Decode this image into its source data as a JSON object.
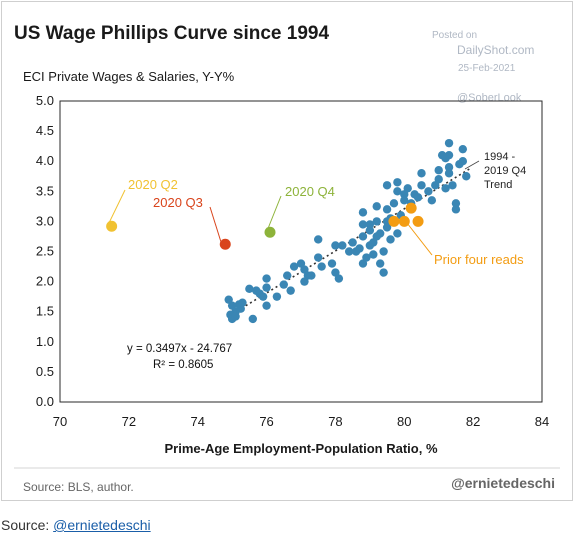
{
  "chart_data": {
    "type": "scatter",
    "title": "US Wage Phillips Curve since 1994",
    "subtitle": "ECI Private Wages & Salaries, Y-Y%",
    "xlabel": "Prime-Age Employment-Population Ratio, %",
    "xlim": [
      70,
      84
    ],
    "ylim": [
      0,
      5
    ],
    "x_ticks": [
      70,
      72,
      74,
      76,
      78,
      80,
      82,
      84
    ],
    "y_ticks": [
      0.0,
      0.5,
      1.0,
      1.5,
      2.0,
      2.5,
      3.0,
      3.5,
      4.0,
      4.5,
      5.0
    ],
    "x_tick_labels": [
      "70",
      "72",
      "74",
      "76",
      "78",
      "80",
      "82",
      "84"
    ],
    "y_tick_labels": [
      "0.0",
      "0.5",
      "1.0",
      "1.5",
      "2.0",
      "2.5",
      "3.0",
      "3.5",
      "4.0",
      "4.5",
      "5.0"
    ],
    "grid": false,
    "series": [
      {
        "color": "#3a86b4",
        "points": [
          [
            74.9,
            1.7
          ],
          [
            75.0,
            1.6
          ],
          [
            75.1,
            1.5
          ],
          [
            74.95,
            1.45
          ],
          [
            75.2,
            1.62
          ],
          [
            75.25,
            1.55
          ],
          [
            75.0,
            1.38
          ],
          [
            75.1,
            1.42
          ],
          [
            75.3,
            1.65
          ],
          [
            75.6,
            1.38
          ],
          [
            75.5,
            1.88
          ],
          [
            75.7,
            1.85
          ],
          [
            75.8,
            1.8
          ],
          [
            75.9,
            1.75
          ],
          [
            76.0,
            1.9
          ],
          [
            76.0,
            2.05
          ],
          [
            76.0,
            1.6
          ],
          [
            76.3,
            1.75
          ],
          [
            76.5,
            1.95
          ],
          [
            76.6,
            2.1
          ],
          [
            76.7,
            1.85
          ],
          [
            76.8,
            2.25
          ],
          [
            77.0,
            2.3
          ],
          [
            77.1,
            2.0
          ],
          [
            77.1,
            2.2
          ],
          [
            77.2,
            2.1
          ],
          [
            77.3,
            2.1
          ],
          [
            77.5,
            2.4
          ],
          [
            77.6,
            2.25
          ],
          [
            77.5,
            2.7
          ],
          [
            77.9,
            2.3
          ],
          [
            78.0,
            2.6
          ],
          [
            78.0,
            2.15
          ],
          [
            78.1,
            2.05
          ],
          [
            78.2,
            2.6
          ],
          [
            78.4,
            2.5
          ],
          [
            78.5,
            2.65
          ],
          [
            78.6,
            2.5
          ],
          [
            78.7,
            2.55
          ],
          [
            78.8,
            2.3
          ],
          [
            78.8,
            2.75
          ],
          [
            78.8,
            2.95
          ],
          [
            78.8,
            3.15
          ],
          [
            78.9,
            2.4
          ],
          [
            79.0,
            2.6
          ],
          [
            79.0,
            2.85
          ],
          [
            79.0,
            2.95
          ],
          [
            79.1,
            2.65
          ],
          [
            79.1,
            2.45
          ],
          [
            79.2,
            2.75
          ],
          [
            79.2,
            3.0
          ],
          [
            79.2,
            3.25
          ],
          [
            79.3,
            2.8
          ],
          [
            79.3,
            2.3
          ],
          [
            79.4,
            2.15
          ],
          [
            79.4,
            2.5
          ],
          [
            79.5,
            2.9
          ],
          [
            79.5,
            3.0
          ],
          [
            79.5,
            3.2
          ],
          [
            79.5,
            3.6
          ],
          [
            79.6,
            2.7
          ],
          [
            79.6,
            3.05
          ],
          [
            79.7,
            3.3
          ],
          [
            79.8,
            3.5
          ],
          [
            79.8,
            3.65
          ],
          [
            79.8,
            2.8
          ],
          [
            79.9,
            3.1
          ],
          [
            80.0,
            3.35
          ],
          [
            80.0,
            3.45
          ],
          [
            80.1,
            3.55
          ],
          [
            80.2,
            3.3
          ],
          [
            80.2,
            3.2
          ],
          [
            80.3,
            3.45
          ],
          [
            80.4,
            3.4
          ],
          [
            80.5,
            3.6
          ],
          [
            80.5,
            3.8
          ],
          [
            80.7,
            3.5
          ],
          [
            80.8,
            3.35
          ],
          [
            80.9,
            3.6
          ],
          [
            81.0,
            3.7
          ],
          [
            81.0,
            3.85
          ],
          [
            81.1,
            4.1
          ],
          [
            81.2,
            4.05
          ],
          [
            81.2,
            3.55
          ],
          [
            81.3,
            4.3
          ],
          [
            81.3,
            3.9
          ],
          [
            81.3,
            3.8
          ],
          [
            81.3,
            4.1
          ],
          [
            81.4,
            3.6
          ],
          [
            81.5,
            3.3
          ],
          [
            81.5,
            3.2
          ],
          [
            81.6,
            3.95
          ],
          [
            81.7,
            4.2
          ],
          [
            81.7,
            4.0
          ],
          [
            81.8,
            3.75
          ]
        ]
      }
    ],
    "prior_four_reads": {
      "label": "Prior four reads",
      "color": "#f39c12",
      "points": [
        [
          79.7,
          3.0
        ],
        [
          80.0,
          3.0
        ],
        [
          80.2,
          3.22
        ],
        [
          80.4,
          3.0
        ]
      ]
    },
    "highlights": [
      {
        "label": "2020 Q2",
        "x": 71.5,
        "y": 2.92,
        "color": "#f1c232"
      },
      {
        "label": "2020 Q3",
        "x": 74.8,
        "y": 2.62,
        "color": "#d9441c"
      },
      {
        "label": "2020 Q4",
        "x": 76.1,
        "y": 2.82,
        "color": "#8db33a"
      }
    ],
    "trend": {
      "slope": 0.3497,
      "intercept": -24.767,
      "x_range": [
        74.9,
        81.9
      ],
      "label_lines": [
        "1994 -",
        "2019 Q4",
        "Trend"
      ],
      "equation": "y = 0.3497x - 24.767",
      "r2": "R² = 0.8605"
    }
  },
  "watermark": {
    "posted_on": "Posted on",
    "site": "DailyShot.com",
    "date": "25-Feb-2021",
    "handle": "@SoberLook"
  },
  "footer": {
    "source": "Source: BLS, author.",
    "handle": "@ernietedeschi"
  },
  "caption": {
    "prefix": "Source: ",
    "link_text": "@ernietedeschi"
  }
}
